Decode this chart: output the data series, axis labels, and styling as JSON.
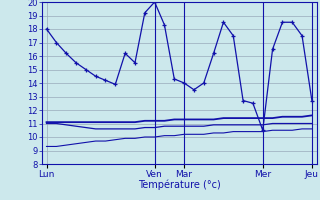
{
  "background_color": "#cce8ec",
  "grid_color": "#99aabb",
  "line_color": "#1111aa",
  "xlabel": "Température (°c)",
  "ylim": [
    8,
    20
  ],
  "yticks": [
    8,
    9,
    10,
    11,
    12,
    13,
    14,
    15,
    16,
    17,
    18,
    19,
    20
  ],
  "day_labels": [
    "Lun",
    "Ven",
    "Mar",
    "Mer",
    "Jeu"
  ],
  "day_x": [
    0,
    11,
    14,
    22,
    27
  ],
  "vlines": [
    11,
    14,
    22,
    27
  ],
  "n": 28,
  "s1": [
    18.0,
    17.0,
    16.2,
    15.5,
    15.0,
    14.5,
    14.2,
    13.9,
    16.2,
    15.5,
    19.2,
    20.0,
    18.3,
    14.3,
    14.0,
    13.5,
    14.0,
    16.2,
    18.5,
    17.5,
    12.7,
    12.5,
    10.5,
    16.5,
    18.5,
    18.5,
    17.5,
    12.7
  ],
  "s2": [
    11.1,
    11.1,
    11.1,
    11.1,
    11.1,
    11.1,
    11.1,
    11.1,
    11.1,
    11.1,
    11.2,
    11.2,
    11.2,
    11.3,
    11.3,
    11.3,
    11.3,
    11.3,
    11.4,
    11.4,
    11.4,
    11.4,
    11.4,
    11.4,
    11.5,
    11.5,
    11.5,
    11.6
  ],
  "s3": [
    11.0,
    11.0,
    10.9,
    10.8,
    10.7,
    10.6,
    10.6,
    10.6,
    10.6,
    10.6,
    10.7,
    10.7,
    10.8,
    10.8,
    10.8,
    10.8,
    10.8,
    10.9,
    10.9,
    10.9,
    10.9,
    10.9,
    10.9,
    11.0,
    11.0,
    11.0,
    11.0,
    11.0
  ],
  "s4": [
    9.3,
    9.3,
    9.4,
    9.5,
    9.6,
    9.7,
    9.7,
    9.8,
    9.9,
    9.9,
    10.0,
    10.0,
    10.1,
    10.1,
    10.2,
    10.2,
    10.2,
    10.3,
    10.3,
    10.4,
    10.4,
    10.4,
    10.4,
    10.5,
    10.5,
    10.5,
    10.6,
    10.6
  ]
}
